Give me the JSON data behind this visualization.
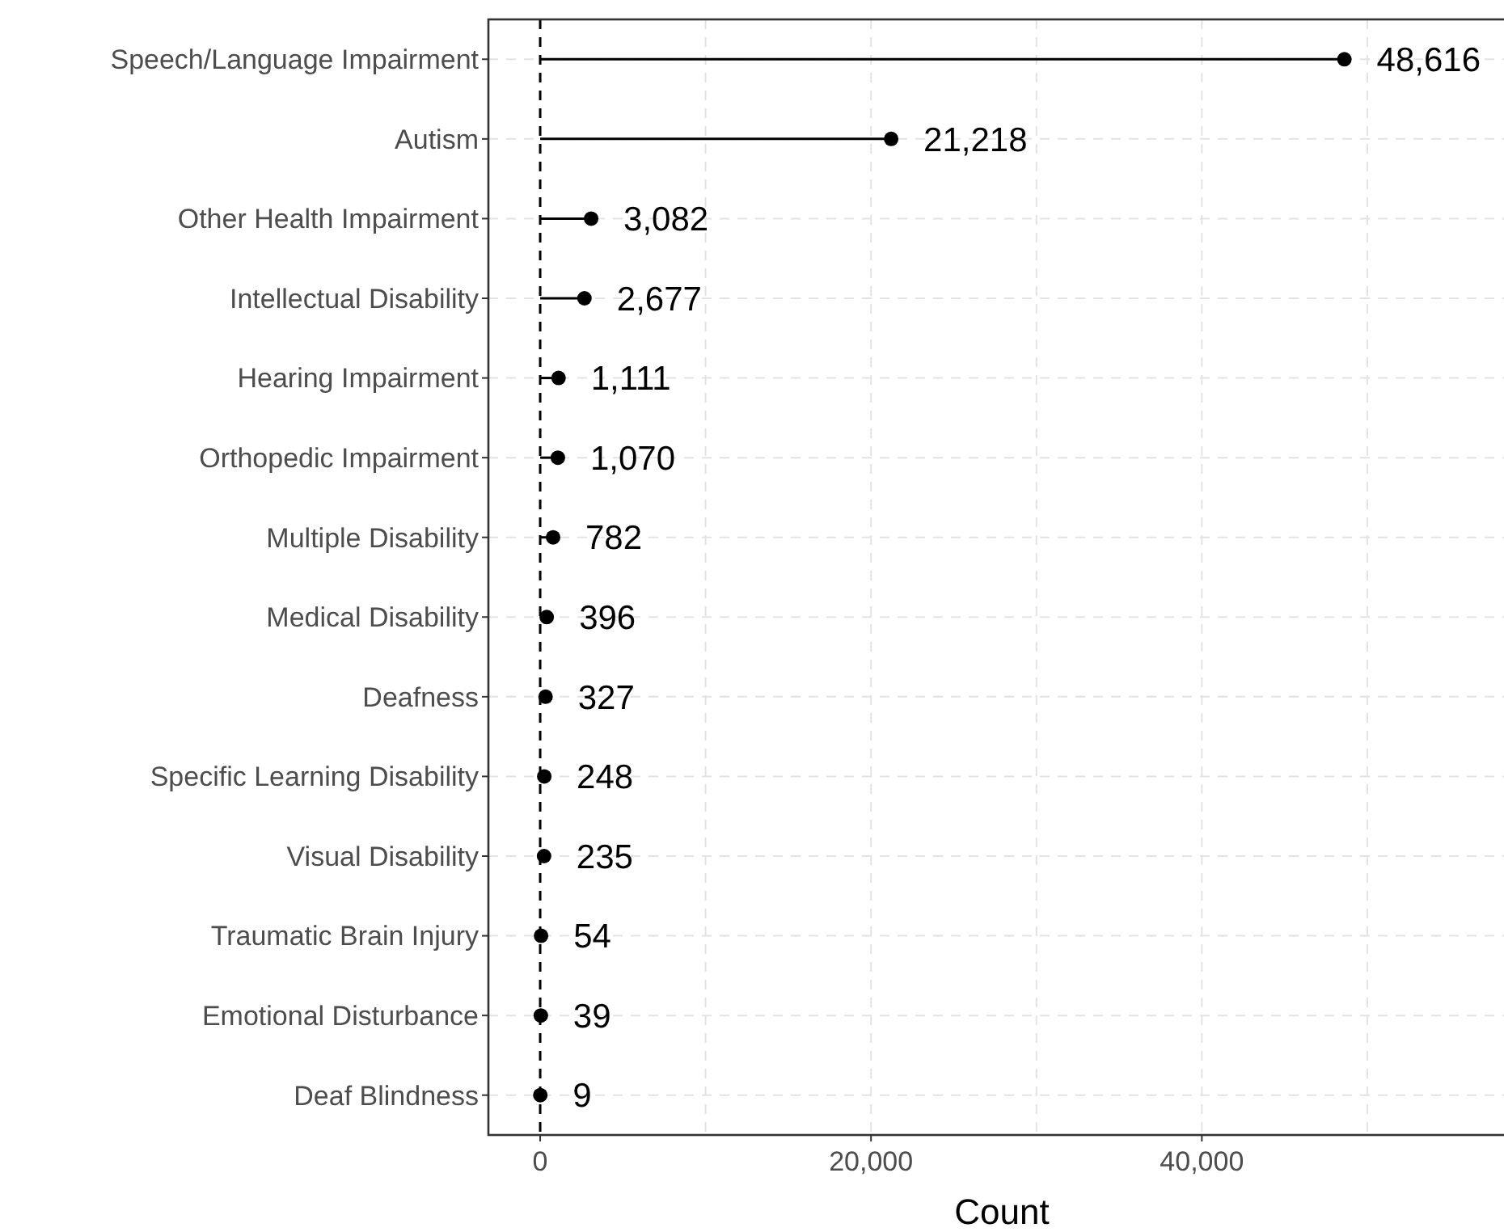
{
  "chart_data": {
    "type": "lollipop",
    "orientation": "horizontal",
    "xlabel": "Count",
    "categories": [
      "Speech/Language Impairment",
      "Autism",
      "Other Health Impairment",
      "Intellectual Disability",
      "Hearing Impairment",
      "Orthopedic Impairment",
      "Multiple Disability",
      "Medical Disability",
      "Deafness",
      "Specific Learning Disability",
      "Visual Disability",
      "Traumatic Brain Injury",
      "Emotional Disturbance",
      "Deaf Blindness"
    ],
    "values": [
      48616,
      21218,
      3082,
      2677,
      1111,
      1070,
      782,
      396,
      327,
      248,
      235,
      54,
      39,
      9
    ],
    "value_labels": [
      "48,616",
      "21,218",
      "3,082",
      "2,677",
      "1,111",
      "1,070",
      "782",
      "396",
      "327",
      "248",
      "235",
      "54",
      "39",
      "9"
    ],
    "color": "#000000",
    "marker": "circle",
    "xlim": [
      -3130,
      58950
    ],
    "xticks": [
      {
        "value": 0,
        "label": "0"
      },
      {
        "value": 10000,
        "label": null
      },
      {
        "value": 20000,
        "label": "20,000"
      },
      {
        "value": 30000,
        "label": null
      },
      {
        "value": 40000,
        "label": "40,000"
      },
      {
        "value": 50000,
        "label": null
      }
    ],
    "grid": true,
    "ref_lines": [
      {
        "axis": "x",
        "value": 0,
        "line_style": "dashed",
        "color": "#000000"
      }
    ]
  }
}
